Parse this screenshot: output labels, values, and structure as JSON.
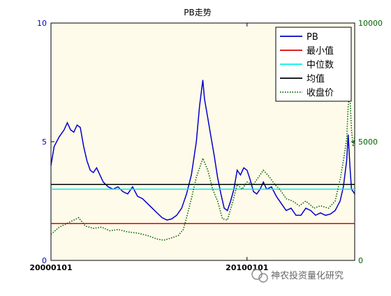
{
  "chart_data": {
    "type": "line",
    "title": "PB走势",
    "x_tick_labels": [
      "20000101",
      "20100101"
    ],
    "x_range": [
      "2000-01-01",
      "2015-06-30"
    ],
    "x_ticks": [
      "2000-01-01",
      "2010-01-01"
    ],
    "y_left": {
      "range": [
        0,
        10
      ],
      "ticks": [
        0,
        5,
        10
      ],
      "color": "#0000cc"
    },
    "y_right": {
      "range": [
        0,
        10000
      ],
      "ticks": [
        0,
        5000,
        10000
      ],
      "color": "#006600"
    },
    "background": "#fffbea",
    "legend": {
      "placement": "top-right"
    },
    "series": [
      {
        "name": "PB",
        "axis": "left",
        "color": "#0000cc",
        "style": "solid",
        "points": [
          [
            "2000-01-01",
            4.0
          ],
          [
            "2000-03-01",
            4.8
          ],
          [
            "2000-06-01",
            5.2
          ],
          [
            "2000-09-01",
            5.5
          ],
          [
            "2000-11-01",
            5.8
          ],
          [
            "2001-01-01",
            5.5
          ],
          [
            "2001-03-01",
            5.4
          ],
          [
            "2001-05-01",
            5.7
          ],
          [
            "2001-07-01",
            5.6
          ],
          [
            "2001-09-01",
            4.8
          ],
          [
            "2001-11-01",
            4.2
          ],
          [
            "2002-01-01",
            3.8
          ],
          [
            "2002-03-01",
            3.7
          ],
          [
            "2002-05-01",
            3.9
          ],
          [
            "2002-07-01",
            3.6
          ],
          [
            "2002-09-01",
            3.3
          ],
          [
            "2002-12-01",
            3.1
          ],
          [
            "2003-03-01",
            3.0
          ],
          [
            "2003-06-01",
            3.1
          ],
          [
            "2003-09-01",
            2.9
          ],
          [
            "2003-12-01",
            2.8
          ],
          [
            "2004-03-01",
            3.1
          ],
          [
            "2004-06-01",
            2.7
          ],
          [
            "2004-09-01",
            2.6
          ],
          [
            "2004-12-01",
            2.4
          ],
          [
            "2005-03-01",
            2.2
          ],
          [
            "2005-06-01",
            2.0
          ],
          [
            "2005-09-01",
            1.8
          ],
          [
            "2005-12-01",
            1.7
          ],
          [
            "2006-03-01",
            1.75
          ],
          [
            "2006-06-01",
            1.9
          ],
          [
            "2006-09-01",
            2.2
          ],
          [
            "2006-12-01",
            2.8
          ],
          [
            "2007-03-01",
            3.6
          ],
          [
            "2007-06-01",
            5.0
          ],
          [
            "2007-08-01",
            6.5
          ],
          [
            "2007-10-01",
            7.6
          ],
          [
            "2007-11-01",
            6.8
          ],
          [
            "2008-01-01",
            6.0
          ],
          [
            "2008-03-01",
            5.2
          ],
          [
            "2008-05-01",
            4.4
          ],
          [
            "2008-07-01",
            3.5
          ],
          [
            "2008-09-01",
            2.8
          ],
          [
            "2008-11-01",
            2.2
          ],
          [
            "2009-01-01",
            2.1
          ],
          [
            "2009-03-01",
            2.5
          ],
          [
            "2009-05-01",
            3.0
          ],
          [
            "2009-07-01",
            3.8
          ],
          [
            "2009-09-01",
            3.6
          ],
          [
            "2009-11-01",
            3.9
          ],
          [
            "2010-01-01",
            3.8
          ],
          [
            "2010-03-01",
            3.4
          ],
          [
            "2010-05-01",
            2.9
          ],
          [
            "2010-07-01",
            2.8
          ],
          [
            "2010-09-01",
            3.0
          ],
          [
            "2010-11-01",
            3.3
          ],
          [
            "2011-01-01",
            3.0
          ],
          [
            "2011-04-01",
            3.1
          ],
          [
            "2011-07-01",
            2.7
          ],
          [
            "2011-10-01",
            2.4
          ],
          [
            "2012-01-01",
            2.1
          ],
          [
            "2012-04-01",
            2.2
          ],
          [
            "2012-07-01",
            1.9
          ],
          [
            "2012-10-01",
            1.9
          ],
          [
            "2013-01-01",
            2.2
          ],
          [
            "2013-04-01",
            2.1
          ],
          [
            "2013-07-01",
            1.9
          ],
          [
            "2013-10-01",
            2.0
          ],
          [
            "2014-01-01",
            1.9
          ],
          [
            "2014-04-01",
            1.95
          ],
          [
            "2014-07-01",
            2.1
          ],
          [
            "2014-10-01",
            2.5
          ],
          [
            "2014-12-01",
            3.1
          ],
          [
            "2015-02-01",
            4.2
          ],
          [
            "2015-03-01",
            5.3
          ],
          [
            "2015-04-01",
            4.0
          ],
          [
            "2015-05-01",
            3.0
          ],
          [
            "2015-06-01",
            2.9
          ],
          [
            "2015-06-30",
            2.8
          ]
        ]
      },
      {
        "name": "最小值",
        "axis": "left",
        "color": "#dd0000",
        "style": "solid",
        "points": [
          [
            "2000-01-01",
            1.55
          ],
          [
            "2015-06-30",
            1.55
          ]
        ]
      },
      {
        "name": "中位数",
        "axis": "left",
        "color": "#00eeee",
        "style": "solid",
        "points": [
          [
            "2000-01-01",
            3.0
          ],
          [
            "2015-06-30",
            3.0
          ]
        ]
      },
      {
        "name": "均值",
        "axis": "left",
        "color": "#000000",
        "style": "solid",
        "points": [
          [
            "2000-01-01",
            3.2
          ],
          [
            "2015-06-30",
            3.2
          ]
        ]
      },
      {
        "name": "收盘价",
        "axis": "right",
        "color": "#006600",
        "style": "dotted",
        "points": [
          [
            "2000-01-01",
            1100
          ],
          [
            "2000-06-01",
            1400
          ],
          [
            "2000-12-01",
            1600
          ],
          [
            "2001-06-01",
            1800
          ],
          [
            "2001-10-01",
            1450
          ],
          [
            "2002-03-01",
            1350
          ],
          [
            "2002-08-01",
            1400
          ],
          [
            "2003-01-01",
            1250
          ],
          [
            "2003-06-01",
            1300
          ],
          [
            "2003-12-01",
            1200
          ],
          [
            "2004-06-01",
            1150
          ],
          [
            "2004-12-01",
            1050
          ],
          [
            "2005-06-01",
            900
          ],
          [
            "2005-10-01",
            850
          ],
          [
            "2006-03-01",
            950
          ],
          [
            "2006-07-01",
            1050
          ],
          [
            "2006-10-01",
            1300
          ],
          [
            "2006-12-01",
            1800
          ],
          [
            "2007-03-01",
            2600
          ],
          [
            "2007-06-01",
            3500
          ],
          [
            "2007-10-01",
            4300
          ],
          [
            "2008-01-01",
            3800
          ],
          [
            "2008-04-01",
            3000
          ],
          [
            "2008-07-01",
            2500
          ],
          [
            "2008-10-01",
            1750
          ],
          [
            "2009-01-01",
            1700
          ],
          [
            "2009-04-01",
            2400
          ],
          [
            "2009-07-01",
            3200
          ],
          [
            "2009-10-01",
            3000
          ],
          [
            "2010-01-01",
            3300
          ],
          [
            "2010-05-01",
            3200
          ],
          [
            "2010-08-01",
            3500
          ],
          [
            "2010-11-01",
            3800
          ],
          [
            "2011-03-01",
            3500
          ],
          [
            "2011-06-01",
            3200
          ],
          [
            "2011-09-01",
            3000
          ],
          [
            "2012-01-01",
            2600
          ],
          [
            "2012-05-01",
            2500
          ],
          [
            "2012-09-01",
            2300
          ],
          [
            "2013-01-01",
            2500
          ],
          [
            "2013-06-01",
            2200
          ],
          [
            "2013-10-01",
            2300
          ],
          [
            "2014-03-01",
            2200
          ],
          [
            "2014-07-01",
            2500
          ],
          [
            "2014-10-01",
            3400
          ],
          [
            "2014-12-01",
            4200
          ],
          [
            "2015-02-01",
            5100
          ],
          [
            "2015-03-01",
            6500
          ],
          [
            "2015-04-01",
            7000
          ],
          [
            "2015-05-01",
            5500
          ],
          [
            "2015-06-01",
            4800
          ],
          [
            "2015-06-30",
            5200
          ]
        ]
      }
    ]
  },
  "watermark": {
    "text": "神农投资量化研究"
  }
}
